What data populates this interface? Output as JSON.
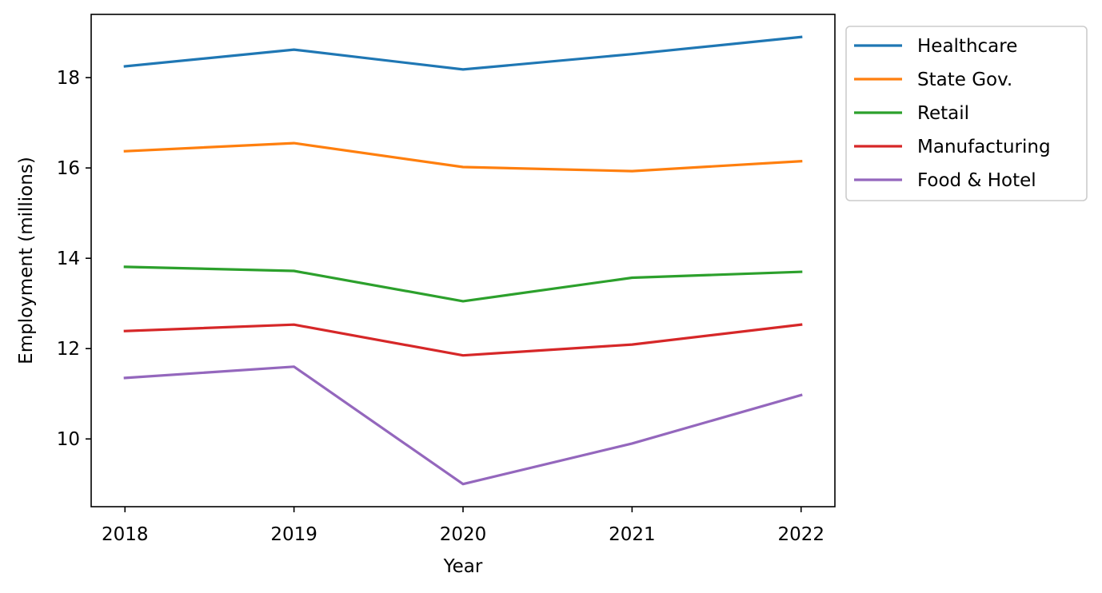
{
  "chart_data": {
    "type": "line",
    "title": "",
    "xlabel": "Year",
    "ylabel": "Employment (millions)",
    "x": [
      2018,
      2019,
      2020,
      2021,
      2022
    ],
    "x_tick_labels": [
      "2018",
      "2019",
      "2020",
      "2021",
      "2022"
    ],
    "y_ticks": [
      10,
      12,
      14,
      16,
      18
    ],
    "y_tick_labels": [
      "10",
      "12",
      "14",
      "16",
      "18"
    ],
    "xlim": [
      2017.8,
      2022.2
    ],
    "ylim": [
      8.5,
      19.4
    ],
    "grid": false,
    "legend_position": "outside-upper-right",
    "series": [
      {
        "name": "Healthcare",
        "color": "#1f77b4",
        "values": [
          18.25,
          18.62,
          18.18,
          18.52,
          18.9
        ]
      },
      {
        "name": "State Gov.",
        "color": "#ff7f0e",
        "values": [
          16.37,
          16.55,
          16.02,
          15.93,
          16.15
        ]
      },
      {
        "name": "Retail",
        "color": "#2ca02c",
        "values": [
          13.81,
          13.72,
          13.05,
          13.57,
          13.7
        ]
      },
      {
        "name": "Manufacturing",
        "color": "#d62728",
        "values": [
          12.39,
          12.53,
          11.85,
          12.09,
          12.53
        ]
      },
      {
        "name": "Food & Hotel",
        "color": "#9467bd",
        "values": [
          11.35,
          11.6,
          9.0,
          9.9,
          10.97
        ]
      }
    ]
  }
}
